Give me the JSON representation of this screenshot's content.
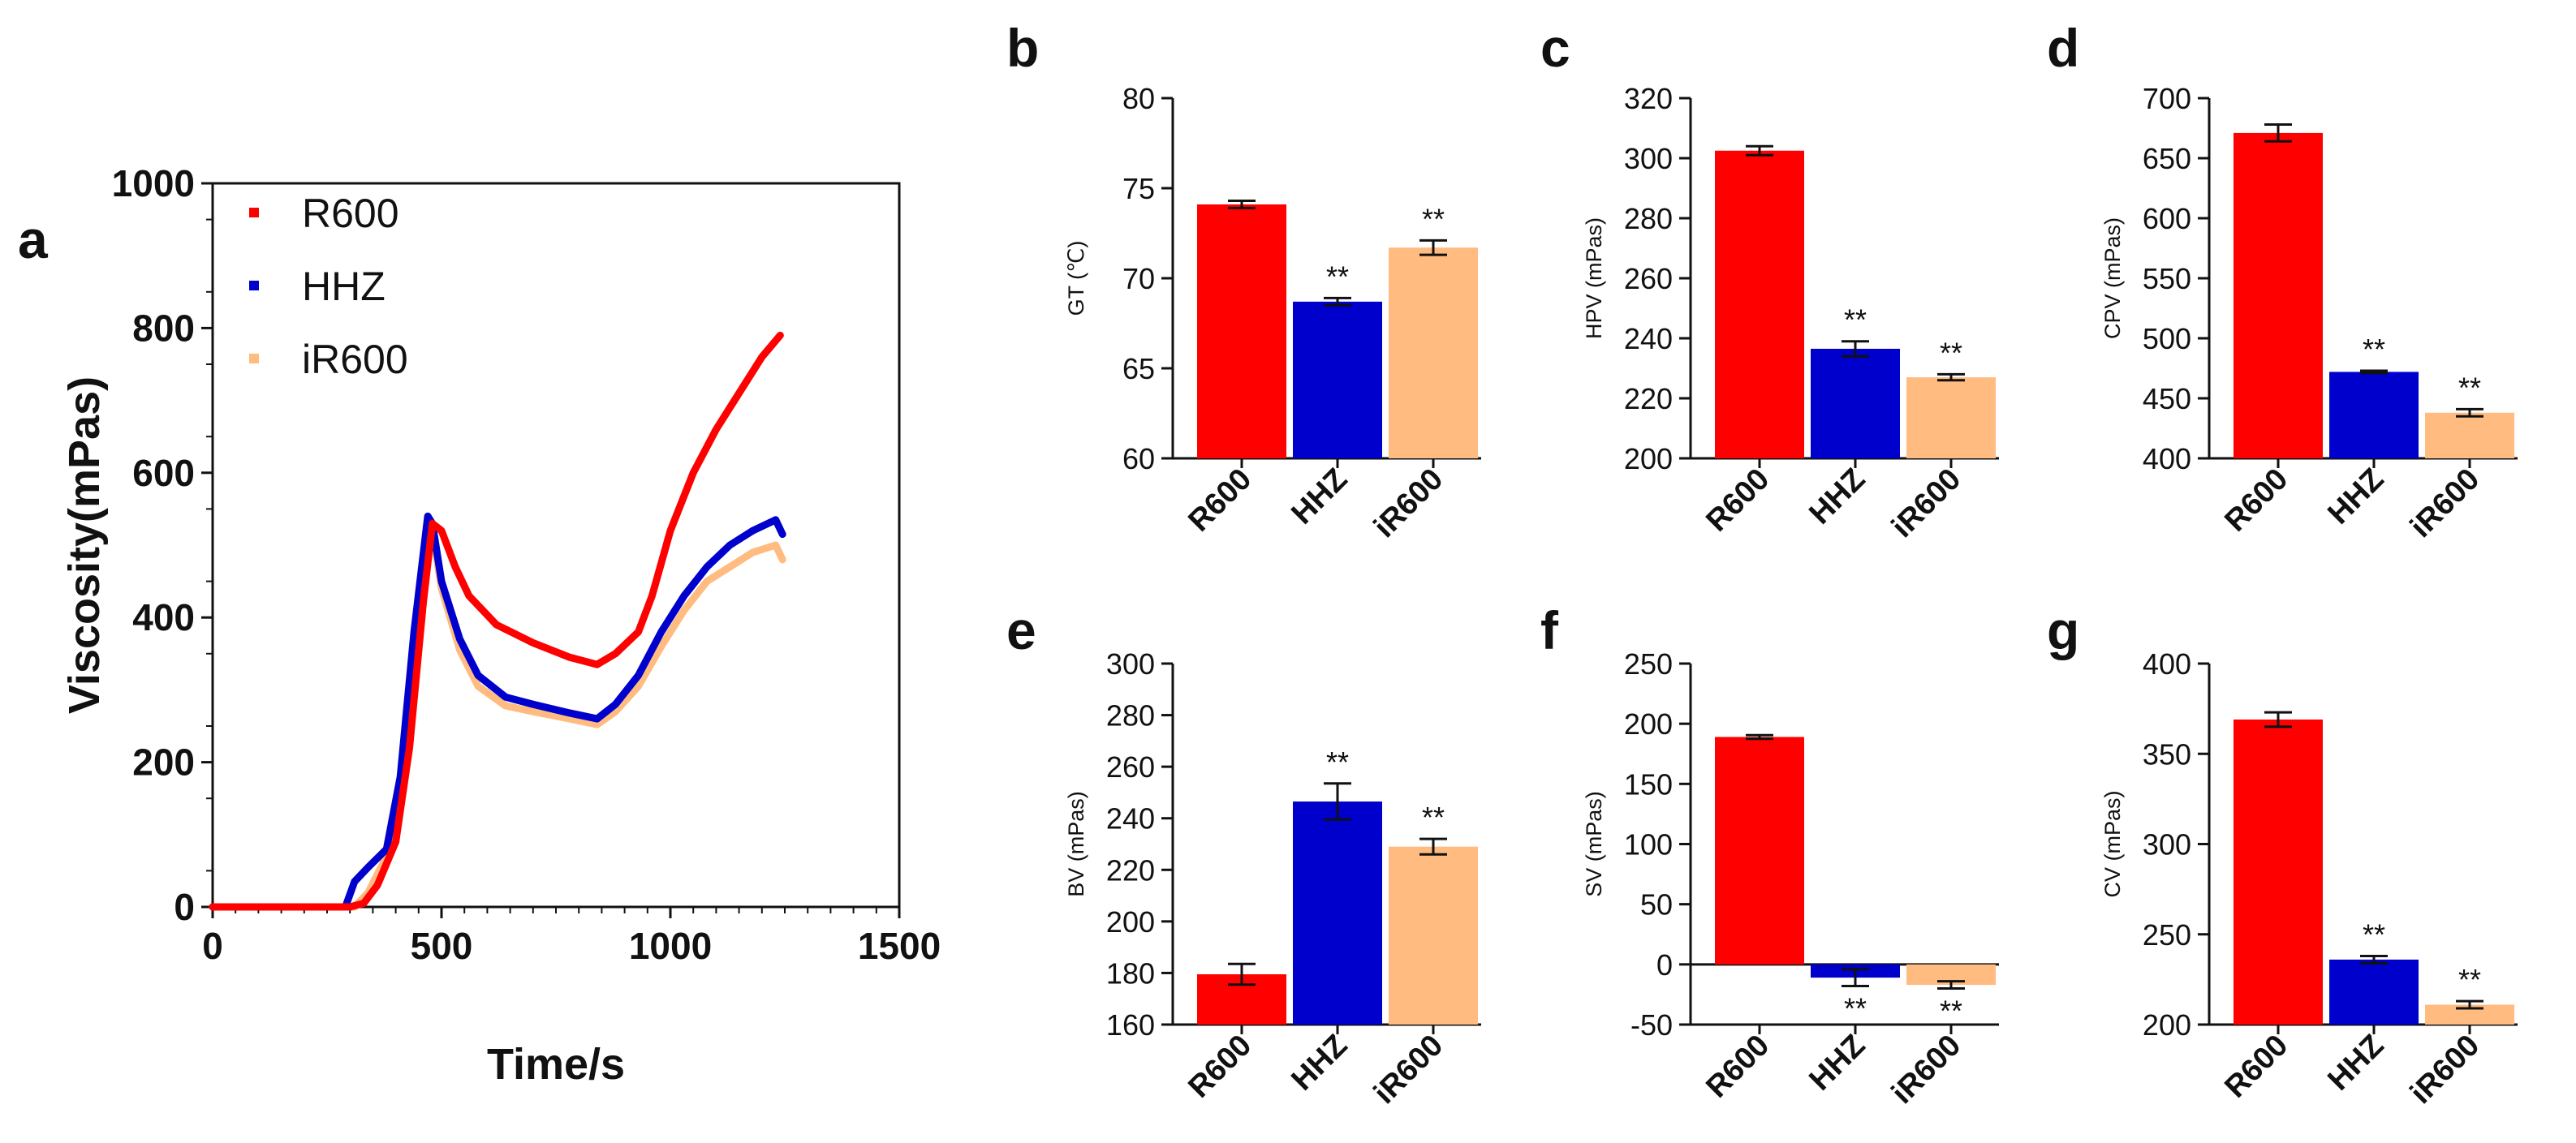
{
  "colors": {
    "R600": "#ff0000",
    "HHZ": "#0000cc",
    "iR600": "#ffbb80"
  },
  "chart_data": [
    {
      "panel": "a",
      "type": "line",
      "xlabel": "Time/s",
      "ylabel": "Viscosity(mPas)",
      "xlim": [
        0,
        1500
      ],
      "ylim": [
        0,
        1000
      ],
      "xticks": [
        "0",
        "500",
        "1000",
        "1500"
      ],
      "yticks": [
        "0",
        "200",
        "400",
        "600",
        "800",
        "1000"
      ],
      "legend_position": "top-left",
      "series": [
        {
          "name": "R600",
          "color": "#ff0000",
          "x": [
            0,
            300,
            330,
            360,
            400,
            430,
            460,
            480,
            500,
            530,
            560,
            620,
            700,
            780,
            840,
            880,
            930,
            960,
            1000,
            1050,
            1100,
            1150,
            1200,
            1240
          ],
          "y": [
            0,
            0,
            5,
            30,
            90,
            220,
            420,
            530,
            520,
            470,
            430,
            390,
            365,
            345,
            335,
            350,
            380,
            430,
            520,
            600,
            660,
            710,
            760,
            790
          ]
        },
        {
          "name": "HHZ",
          "color": "#0000cc",
          "x": [
            0,
            290,
            310,
            340,
            380,
            410,
            440,
            470,
            480,
            500,
            540,
            580,
            640,
            700,
            780,
            840,
            880,
            930,
            980,
            1030,
            1080,
            1130,
            1180,
            1230,
            1245
          ],
          "y": [
            0,
            0,
            35,
            55,
            80,
            180,
            380,
            540,
            530,
            450,
            370,
            320,
            290,
            280,
            268,
            260,
            280,
            320,
            380,
            430,
            470,
            500,
            520,
            535,
            515
          ]
        },
        {
          "name": "iR600",
          "color": "#ffbb80",
          "x": [
            0,
            310,
            340,
            380,
            410,
            440,
            470,
            480,
            500,
            540,
            580,
            640,
            700,
            780,
            840,
            880,
            930,
            980,
            1030,
            1080,
            1130,
            1180,
            1230,
            1245
          ],
          "y": [
            0,
            0,
            20,
            70,
            170,
            370,
            530,
            520,
            440,
            355,
            305,
            278,
            270,
            260,
            252,
            270,
            305,
            360,
            410,
            450,
            470,
            490,
            500,
            480
          ]
        }
      ]
    },
    {
      "panel": "b",
      "type": "bar",
      "ylabel": "GT (℃)",
      "ylim": [
        60,
        80
      ],
      "yticks": [
        "60",
        "65",
        "70",
        "75",
        "80"
      ],
      "categories": [
        "R600",
        "HHZ",
        "iR600"
      ],
      "values": [
        74.1,
        68.7,
        71.7
      ],
      "errors": [
        0.2,
        0.2,
        0.4
      ],
      "significance": [
        "",
        "**",
        "**"
      ]
    },
    {
      "panel": "c",
      "type": "bar",
      "ylabel": "HPV (mPas)",
      "ylim": [
        200,
        320
      ],
      "yticks": [
        "200",
        "220",
        "240",
        "260",
        "280",
        "300",
        "320"
      ],
      "categories": [
        "R600",
        "HHZ",
        "iR600"
      ],
      "values": [
        302.5,
        236.5,
        227
      ],
      "errors": [
        1.5,
        2.5,
        1
      ],
      "significance": [
        "",
        "**",
        "**"
      ]
    },
    {
      "panel": "d",
      "type": "bar",
      "ylabel": "CPV (mPas)",
      "ylim": [
        400,
        700
      ],
      "yticks": [
        "400",
        "450",
        "500",
        "550",
        "600",
        "650",
        "700"
      ],
      "categories": [
        "R600",
        "HHZ",
        "iR600"
      ],
      "values": [
        671,
        472,
        438
      ],
      "errors": [
        7,
        1,
        3
      ],
      "significance": [
        "",
        "**",
        "**"
      ]
    },
    {
      "panel": "e",
      "type": "bar",
      "ylabel": "BV (mPas)",
      "ylim": [
        160,
        300
      ],
      "yticks": [
        "160",
        "180",
        "200",
        "220",
        "240",
        "260",
        "280",
        "300"
      ],
      "categories": [
        "R600",
        "HHZ",
        "iR600"
      ],
      "values": [
        179.5,
        246.5,
        229
      ],
      "errors": [
        4,
        7,
        3
      ],
      "significance": [
        "",
        "**",
        "**"
      ]
    },
    {
      "panel": "f",
      "type": "bar",
      "ylabel": "SV (mPas)",
      "ylim": [
        -50,
        250
      ],
      "yticks": [
        "-50",
        "0",
        "50",
        "100",
        "150",
        "200",
        "250"
      ],
      "categories": [
        "R600",
        "HHZ",
        "iR600"
      ],
      "values": [
        189,
        -11,
        -17
      ],
      "errors": [
        1.5,
        7,
        3
      ],
      "significance": [
        "",
        "**",
        "**"
      ]
    },
    {
      "panel": "g",
      "type": "bar",
      "ylabel": "CV (mPas)",
      "ylim": [
        200,
        400
      ],
      "yticks": [
        "200",
        "250",
        "300",
        "350",
        "400"
      ],
      "categories": [
        "R600",
        "HHZ",
        "iR600"
      ],
      "values": [
        369,
        236,
        211
      ],
      "errors": [
        4,
        2,
        2
      ],
      "significance": [
        "",
        "**",
        "**"
      ]
    }
  ]
}
